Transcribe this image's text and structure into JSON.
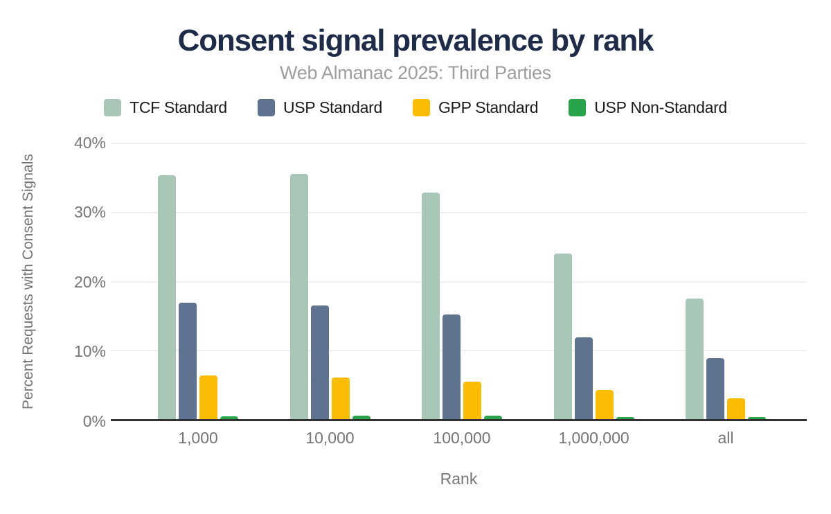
{
  "header": {
    "title": "Consent signal prevalence by rank",
    "subtitle": "Web Almanac 2025: Third Parties"
  },
  "chart_data": {
    "type": "bar",
    "title": "Consent signal prevalence by rank",
    "subtitle": "Web Almanac 2025: Third Parties",
    "categories": [
      "1,000",
      "10,000",
      "100,000",
      "1,000,000",
      "all"
    ],
    "series": [
      {
        "name": "TCF Standard",
        "color": "#a8c7b7",
        "values": [
          35.3,
          35.5,
          32.8,
          24.0,
          17.4
        ]
      },
      {
        "name": "USP Standard",
        "color": "#5f7390",
        "values": [
          16.8,
          16.4,
          15.1,
          11.8,
          8.8
        ]
      },
      {
        "name": "GPP Standard",
        "color": "#fbbd04",
        "values": [
          6.3,
          6.0,
          5.4,
          4.2,
          3.0
        ]
      },
      {
        "name": "USP Non-Standard",
        "color": "#28a44b",
        "values": [
          0.4,
          0.5,
          0.5,
          0.3,
          0.3
        ]
      }
    ],
    "xlabel": "Rank",
    "ylabel": "Percent Requests with Consent Signals",
    "ylim": [
      0,
      40
    ],
    "yticks": [
      "0%",
      "10%",
      "20%",
      "30%",
      "40%"
    ],
    "grid": true,
    "legend_position": "top"
  },
  "colors": {
    "title_text": "#1e2b49",
    "subtitle_text": "#9e9e9e",
    "axis_text": "#757575",
    "legend_text": "#1b1b1b",
    "gridline": "#f0f0f0",
    "axis_line": "#323232",
    "background": "#ffffff"
  }
}
